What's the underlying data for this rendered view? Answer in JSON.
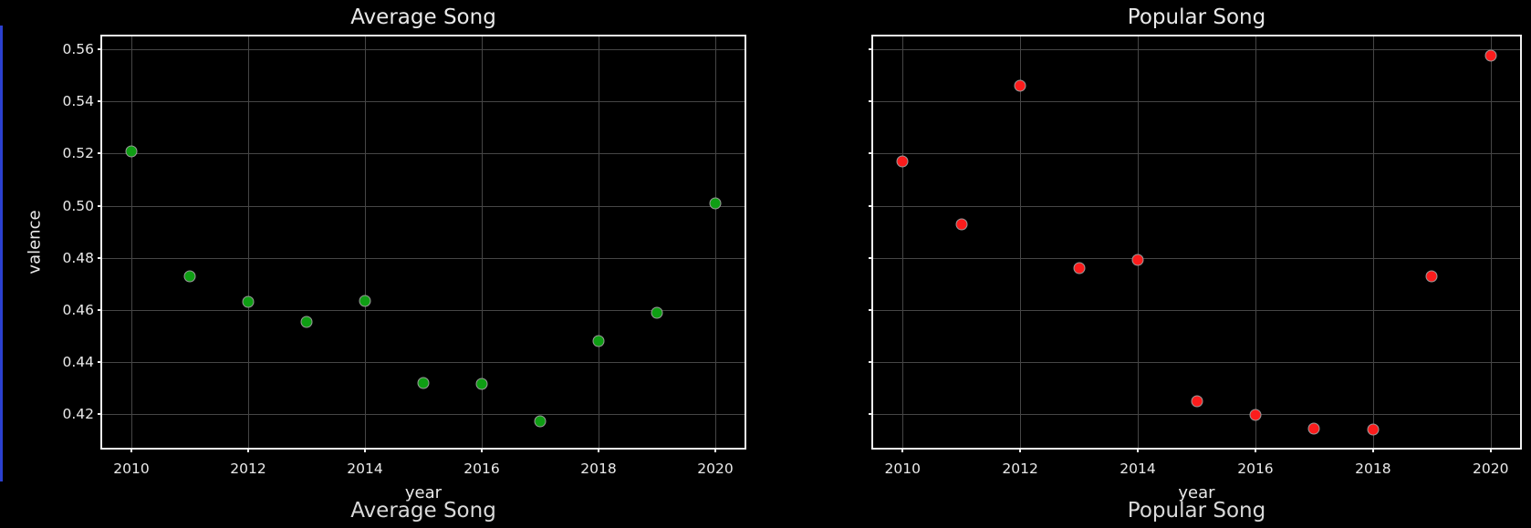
{
  "figure": {
    "background": "#000000",
    "text_color": "#eaeaea",
    "grid_color": "#464646",
    "spine_color": "#f0f0f0",
    "left_edge_accent_color": "#2b40d0"
  },
  "chart_data": [
    {
      "type": "scatter",
      "title": "Average Song",
      "xlabel": "year",
      "ylabel": "valence",
      "x": [
        2010,
        2011,
        2012,
        2013,
        2014,
        2015,
        2016,
        2017,
        2018,
        2019,
        2020
      ],
      "y": [
        0.521,
        0.473,
        0.463,
        0.4555,
        0.4635,
        0.432,
        0.4315,
        0.417,
        0.448,
        0.459,
        0.501
      ],
      "xlim": [
        2009.5,
        2020.5
      ],
      "ylim": [
        0.407,
        0.565
      ],
      "xticks": [
        2010,
        2012,
        2014,
        2016,
        2018,
        2020
      ],
      "yticks": [
        0.42,
        0.44,
        0.46,
        0.48,
        0.5,
        0.52,
        0.54,
        0.56
      ],
      "show_ytick_labels": true,
      "grid": true,
      "legend": false,
      "marker_color": "#0f9e14",
      "marker_edge_color": "#9b9b9b"
    },
    {
      "type": "scatter",
      "title": "Popular Song",
      "xlabel": "year",
      "ylabel": "",
      "x": [
        2010,
        2011,
        2012,
        2013,
        2014,
        2015,
        2016,
        2017,
        2018,
        2019,
        2020
      ],
      "y": [
        0.517,
        0.493,
        0.546,
        0.476,
        0.479,
        0.425,
        0.4195,
        0.4145,
        0.414,
        0.473,
        0.5575
      ],
      "xlim": [
        2009.5,
        2020.5
      ],
      "ylim": [
        0.407,
        0.565
      ],
      "xticks": [
        2010,
        2012,
        2014,
        2016,
        2018,
        2020
      ],
      "yticks": [
        0.42,
        0.44,
        0.46,
        0.48,
        0.5,
        0.52,
        0.54,
        0.56
      ],
      "show_ytick_labels": false,
      "grid": true,
      "legend": false,
      "marker_color": "#fb1c1c",
      "marker_edge_color": "#9b9b9b"
    }
  ],
  "bottom_partial_titles": [
    "Average Song",
    "Popular Song"
  ]
}
